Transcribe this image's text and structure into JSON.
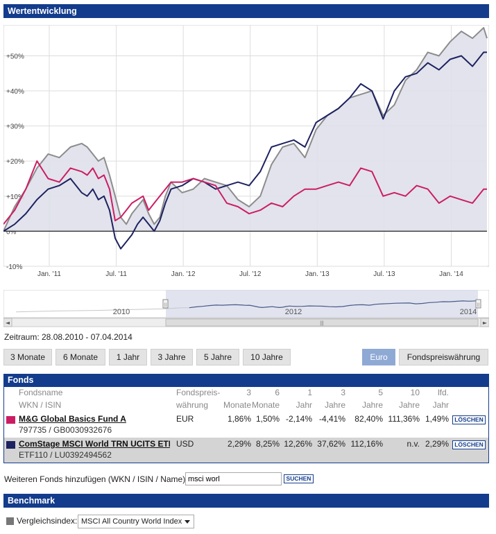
{
  "header": {
    "title": "Wertentwicklung"
  },
  "chart_data": {
    "type": "line",
    "ylim": [
      -10,
      58
    ],
    "y_ticks": [
      {
        "value": -10,
        "label": "-10%"
      },
      {
        "value": 0,
        "label": "0%"
      },
      {
        "value": 10,
        "label": "+10%"
      },
      {
        "value": 20,
        "label": "+20%"
      },
      {
        "value": 30,
        "label": "+30%"
      },
      {
        "value": 40,
        "label": "+40%"
      },
      {
        "value": 50,
        "label": "+50%"
      }
    ],
    "x_ticks": [
      "Jan. '11",
      "Jul. '11",
      "Jan. '12",
      "Jul. '12",
      "Jan. '13",
      "Jul. '13",
      "Jan. '14"
    ],
    "x_tick_months": [
      4.1,
      10.1,
      16.1,
      22.1,
      28.1,
      34.1,
      40.1
    ],
    "x_range_months": [
      0,
      43.3
    ],
    "series": [
      {
        "name": "Vergleichsindex",
        "color": "#8c8c8c",
        "x": [
          0,
          1,
          2,
          3,
          4,
          5,
          6,
          7,
          7.5,
          8,
          8.5,
          9,
          9.5,
          10,
          10.5,
          11,
          11.5,
          12,
          12.5,
          13,
          13.5,
          14,
          14.5,
          15,
          16,
          17,
          18,
          19,
          20,
          21,
          22,
          23,
          24,
          25,
          26,
          27,
          28,
          29,
          30,
          31,
          32,
          33,
          34,
          35,
          36,
          37,
          38,
          39,
          40,
          41,
          42,
          43,
          43.3
        ],
        "y": [
          0,
          7,
          12,
          18,
          22,
          21,
          24,
          25,
          24,
          22,
          20,
          21,
          16,
          10,
          4,
          2,
          5,
          7,
          9,
          5,
          2,
          4,
          10,
          14,
          11,
          12,
          15,
          14,
          13,
          9,
          7,
          10,
          19,
          24,
          25,
          21,
          29,
          33,
          35,
          38,
          39,
          40,
          33,
          36,
          43,
          46,
          51,
          50,
          54,
          57,
          55,
          58,
          55
        ]
      },
      {
        "name": "ComStage MSCI World TRN UCITS ETF I",
        "color": "#1d2260",
        "x": [
          0,
          1,
          2,
          3,
          4,
          5,
          6,
          7,
          7.5,
          8,
          8.5,
          9,
          9.5,
          10,
          10.5,
          11,
          11.5,
          12,
          12.5,
          13,
          13.5,
          14,
          14.5,
          15,
          16,
          17,
          18,
          19,
          20,
          21,
          22,
          23,
          24,
          25,
          26,
          27,
          28,
          29,
          30,
          31,
          32,
          33,
          34,
          35,
          36,
          37,
          38,
          39,
          40,
          41,
          42,
          43,
          43.3
        ],
        "y": [
          0,
          2,
          5,
          9,
          12,
          13,
          15,
          11,
          10,
          12,
          9,
          10,
          6,
          -2,
          -5,
          -3,
          -1,
          2,
          4,
          2,
          0,
          3,
          8,
          12,
          13,
          15,
          14,
          12,
          13,
          14,
          13,
          17,
          24,
          25,
          26,
          24,
          31,
          33,
          35,
          38,
          42,
          40,
          32,
          40,
          44,
          45,
          48,
          46,
          49,
          50,
          47,
          51,
          51
        ]
      },
      {
        "name": "M&G Global Basics Fund A",
        "color": "#cc1d64",
        "x": [
          0,
          1,
          2,
          3,
          4,
          5,
          6,
          7,
          7.5,
          8,
          8.5,
          9,
          9.5,
          10,
          10.5,
          11,
          11.5,
          12,
          12.5,
          13,
          13.5,
          14,
          14.5,
          15,
          16,
          17,
          18,
          19,
          20,
          21,
          22,
          23,
          24,
          25,
          26,
          27,
          28,
          29,
          30,
          31,
          32,
          33,
          34,
          35,
          36,
          37,
          38,
          39,
          40,
          41,
          42,
          43,
          43.3
        ],
        "y": [
          2,
          6,
          12,
          20,
          15,
          14,
          18,
          17,
          16,
          18,
          15,
          16,
          12,
          3,
          4,
          6,
          8,
          9,
          10,
          6,
          8,
          10,
          12,
          14,
          14,
          15,
          14,
          13,
          8,
          7,
          5,
          6,
          8,
          7,
          10,
          12,
          12,
          13,
          14,
          13,
          18,
          17,
          10,
          11,
          10,
          13,
          12,
          8,
          10,
          9,
          8,
          12,
          12
        ]
      }
    ]
  },
  "navigator": {
    "year_labels": [
      "2010",
      "2012",
      "2014"
    ],
    "scroll_left": "◄",
    "scroll_right": "►",
    "scroll_grip": "|||",
    "handle_glyph": "||"
  },
  "zeitraum": {
    "label": "Zeitraum: 28.08.2010 - 07.04.2014"
  },
  "range_buttons": [
    "3 Monate",
    "6 Monate",
    "1 Jahr",
    "3 Jahre",
    "5 Jahre",
    "10 Jahre"
  ],
  "currency_buttons": {
    "active": "Euro",
    "inactive": "Fondspreiswährung"
  },
  "fonds": {
    "title": "Fonds",
    "head_line1": [
      "Fondsname",
      "Fondspreis-",
      "3",
      "6",
      "1",
      "3",
      "5",
      "10",
      "lfd."
    ],
    "head_line2": [
      "WKN / ISIN",
      "währung",
      "Monate",
      "Monate",
      "Jahr",
      "Jahre",
      "Jahre",
      "Jahre",
      "Jahr"
    ],
    "rows": [
      {
        "name": "M&G Global Basics Fund A",
        "ids": "797735 / GB0030932676",
        "currency": "EUR",
        "values": [
          "1,86%",
          "1,50%",
          "-2,14%",
          "-4,41%",
          "82,40%",
          "111,36%",
          "1,49%"
        ],
        "color": "#cc1d64",
        "delete_label": "LÖSCHEN"
      },
      {
        "name": "ComStage MSCI World TRN UCITS ETF I",
        "ids": "ETF110 / LU0392494562",
        "currency": "USD",
        "values": [
          "2,29%",
          "8,25%",
          "12,26%",
          "37,62%",
          "112,16%",
          "n.v.",
          "2,29%"
        ],
        "color": "#1d2260",
        "delete_label": "LÖSCHEN"
      }
    ]
  },
  "add_fund": {
    "label": "Weiteren Fonds hinzufügen (WKN / ISIN / Name):",
    "input_value": "msci worl",
    "button_label": "SUCHEN"
  },
  "benchmark": {
    "title": "Benchmark",
    "label": "Vergleichsindex:",
    "selected": "MSCI All Country World Index",
    "color": "#777777"
  }
}
